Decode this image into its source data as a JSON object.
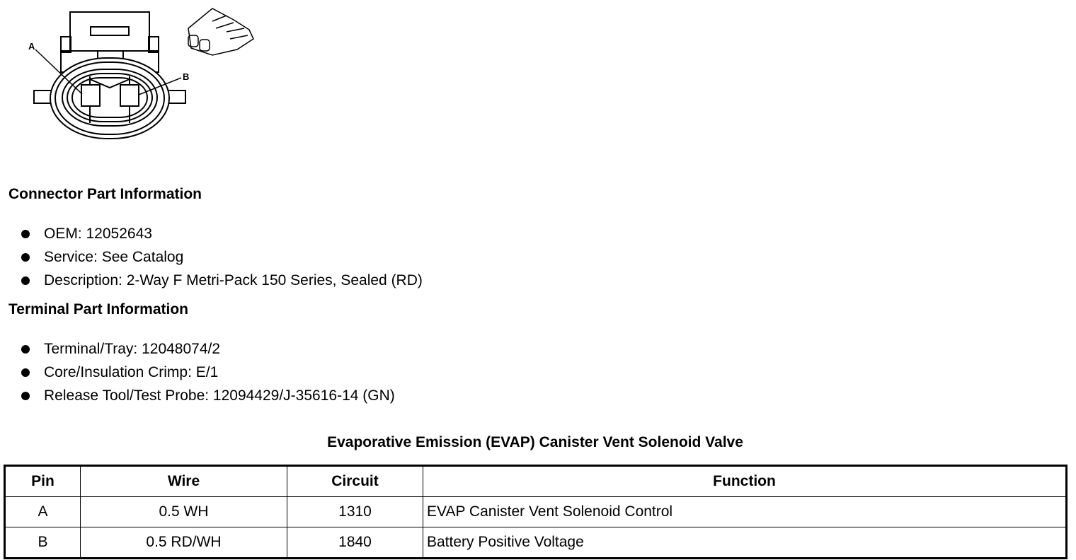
{
  "diagram": {
    "pin_labels": [
      "A",
      "B"
    ]
  },
  "connector_section": {
    "title": "Connector Part Information",
    "items": [
      "OEM: 12052643",
      "Service: See Catalog",
      "Description: 2-Way F Metri-Pack 150 Series, Sealed (RD)"
    ]
  },
  "terminal_section": {
    "title": "Terminal Part Information",
    "items": [
      "Terminal/Tray: 12048074/2",
      "Core/Insulation Crimp: E/1",
      "Release Tool/Test Probe: 12094429/J-35616-14 (GN)"
    ]
  },
  "table": {
    "caption": "Evaporative Emission (EVAP) Canister Vent Solenoid Valve",
    "headers": [
      "Pin",
      "Wire",
      "Circuit",
      "Function"
    ],
    "rows": [
      [
        "A",
        "0.5 WH",
        "1310",
        "EVAP Canister Vent Solenoid Control"
      ],
      [
        "B",
        "0.5 RD/WH",
        "1840",
        "Battery Positive Voltage"
      ]
    ]
  }
}
